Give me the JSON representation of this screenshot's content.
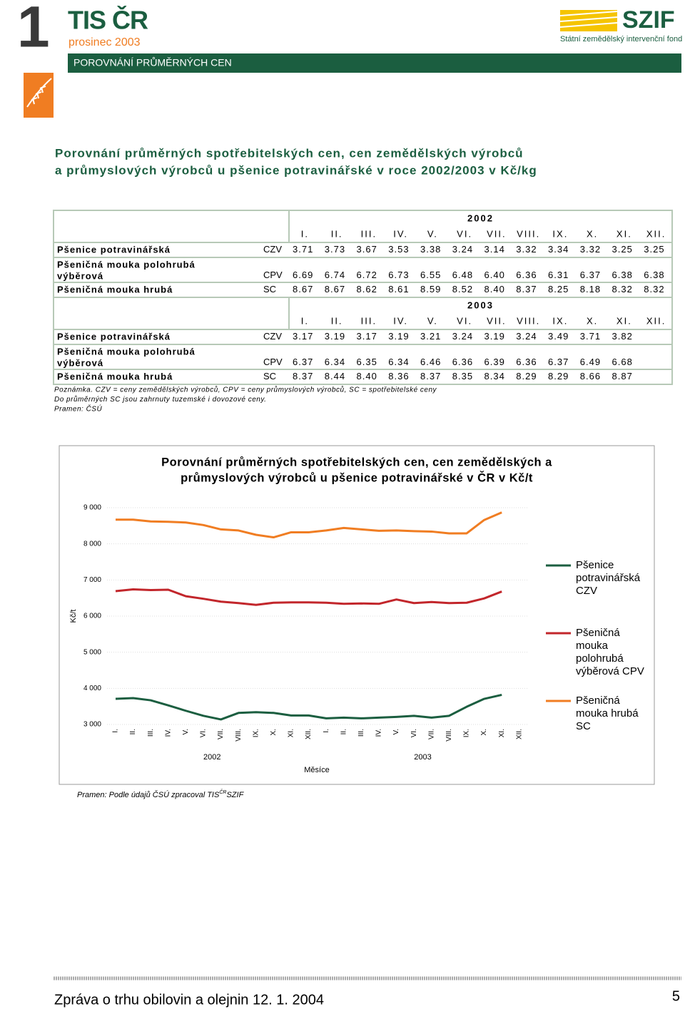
{
  "header": {
    "issue_number": "1",
    "brand": "TIS ČR",
    "date": "prosinec 2003",
    "section": "POROVNÁNÍ PRŮMĚRNÝCH CEN",
    "logo": "SZIF",
    "logo_subtitle": "Státní zemědělský intervenční fond"
  },
  "title": [
    "Porovnání průměrných spotřebitelských cen, cen zemědělských výrobců",
    "a průmyslových výrobců u pšenice potravinářské v roce 2002/2003 v Kč/kg"
  ],
  "table": {
    "blocks": [
      {
        "year": "2002",
        "months": [
          "I.",
          "II.",
          "III.",
          "IV.",
          "V.",
          "VI.",
          "VII.",
          "VIII.",
          "IX.",
          "X.",
          "XI.",
          "XII."
        ],
        "rows": [
          {
            "name": [
              "Pšenice potravinářská"
            ],
            "code": "CZV",
            "values": [
              "3.71",
              "3.73",
              "3.67",
              "3.53",
              "3.38",
              "3.24",
              "3.14",
              "3.32",
              "3.34",
              "3.32",
              "3.25",
              "3.25"
            ]
          },
          {
            "name": [
              "Pšeničná mouka polohrubá",
              "výběrová"
            ],
            "code": "CPV",
            "values": [
              "6.69",
              "6.74",
              "6.72",
              "6.73",
              "6.55",
              "6.48",
              "6.40",
              "6.36",
              "6.31",
              "6.37",
              "6.38",
              "6.38"
            ]
          },
          {
            "name": [
              "Pšeničná mouka hrubá"
            ],
            "code": "SC",
            "values": [
              "8.67",
              "8.67",
              "8.62",
              "8.61",
              "8.59",
              "8.52",
              "8.40",
              "8.37",
              "8.25",
              "8.18",
              "8.32",
              "8.32"
            ]
          }
        ]
      },
      {
        "year": "2003",
        "months": [
          "I.",
          "II.",
          "III.",
          "IV.",
          "V.",
          "VI.",
          "VII.",
          "VIII.",
          "IX.",
          "X.",
          "XI.",
          "XII."
        ],
        "rows": [
          {
            "name": [
              "Pšenice potravinářská"
            ],
            "code": "CZV",
            "values": [
              "3.17",
              "3.19",
              "3.17",
              "3.19",
              "3.21",
              "3.24",
              "3.19",
              "3.24",
              "3.49",
              "3.71",
              "3.82"
            ]
          },
          {
            "name": [
              "Pšeničná mouka polohrubá",
              "výběrová"
            ],
            "code": "CPV",
            "values": [
              "6.37",
              "6.34",
              "6.35",
              "6.34",
              "6.46",
              "6.36",
              "6.39",
              "6.36",
              "6.37",
              "6.49",
              "6.68"
            ]
          },
          {
            "name": [
              "Pšeničná mouka hrubá"
            ],
            "code": "SC",
            "values": [
              "8.37",
              "8.44",
              "8.40",
              "8.36",
              "8.37",
              "8.35",
              "8.34",
              "8.29",
              "8.29",
              "8.66",
              "8.87"
            ]
          }
        ]
      }
    ]
  },
  "notes": [
    "Poznámka. CZV = ceny zemědělských výrobců, CPV = ceny průmyslových výrobců, SC = spotřebitelské ceny",
    "Do průměrných SC jsou zahrnuty tuzemské i dovozové ceny.",
    "Pramen: ČSÚ"
  ],
  "chart_data": {
    "type": "line",
    "title": [
      "Porovnání průměrných spotřebitelských cen, cen zemědělských a",
      "průmyslových výrobců u pšenice potravinářské v ČR v Kč/t"
    ],
    "y_label": "Kč/t",
    "x_label": "Měsíce",
    "x_groups": [
      "2002",
      "2003"
    ],
    "categories": [
      "I.",
      "II.",
      "III.",
      "IV.",
      "V.",
      "VI.",
      "VII.",
      "VIII.",
      "IX.",
      "X.",
      "XI.",
      "XII.",
      "I.",
      "II.",
      "III.",
      "IV.",
      "V.",
      "VI.",
      "VII.",
      "VIII.",
      "IX.",
      "X.",
      "XI.",
      "XII."
    ],
    "ylim": [
      3000,
      9000
    ],
    "yticks": [
      {
        "value": 3000,
        "label": "3 000"
      },
      {
        "value": 4000,
        "label": "4 000"
      },
      {
        "value": 5000,
        "label": "5 000"
      },
      {
        "value": 6000,
        "label": "6 000"
      },
      {
        "value": 7000,
        "label": "7 000"
      },
      {
        "value": 8000,
        "label": "8 000"
      },
      {
        "value": 9000,
        "label": "9 000"
      }
    ],
    "series": [
      {
        "name": "Pšenice potravinářská CZV",
        "color": "#1b5e40",
        "values": [
          3710,
          3730,
          3670,
          3530,
          3380,
          3240,
          3140,
          3320,
          3340,
          3320,
          3250,
          3250,
          3170,
          3190,
          3170,
          3190,
          3210,
          3240,
          3190,
          3240,
          3490,
          3710,
          3820,
          null
        ]
      },
      {
        "name": "Pšeničná mouka polohrubá výběrová CPV",
        "color": "#c2262b",
        "values": [
          6690,
          6740,
          6720,
          6730,
          6550,
          6480,
          6400,
          6360,
          6310,
          6370,
          6380,
          6380,
          6370,
          6340,
          6350,
          6340,
          6460,
          6360,
          6390,
          6360,
          6370,
          6490,
          6680,
          null
        ]
      },
      {
        "name": "Pšeničná mouka hrubá SC",
        "color": "#f07d22",
        "values": [
          8670,
          8670,
          8620,
          8610,
          8590,
          8520,
          8400,
          8370,
          8250,
          8180,
          8320,
          8320,
          8370,
          8440,
          8400,
          8360,
          8370,
          8350,
          8340,
          8290,
          8290,
          8660,
          8870,
          null
        ]
      }
    ],
    "source": [
      "Pramen: Podle údajů ČSÚ zpracoval TIS",
      "ČR",
      "SZIF"
    ]
  },
  "footer": {
    "text": "Zpráva o trhu obilovin a olejnin 12. 1. 2004",
    "page": "5"
  }
}
